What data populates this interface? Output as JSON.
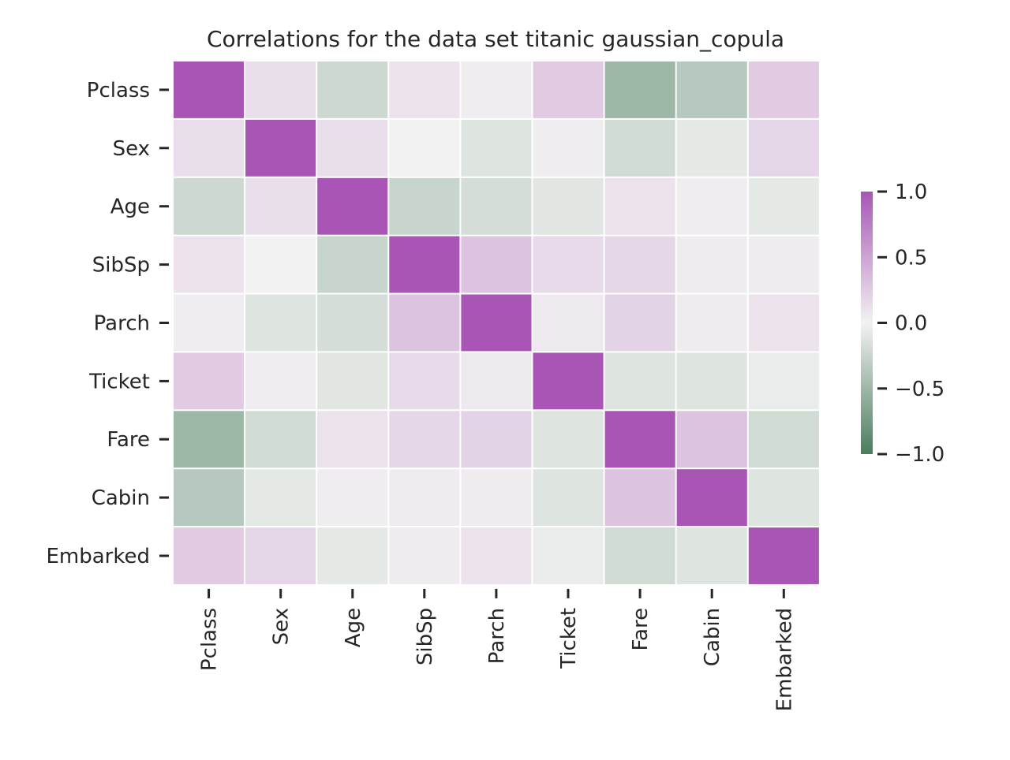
{
  "chart_data": {
    "type": "heatmap",
    "title": "Correlations for the data set titanic gaussian_copula",
    "variables": [
      "Pclass",
      "Sex",
      "Age",
      "SibSp",
      "Parch",
      "Ticket",
      "Fare",
      "Cabin",
      "Embarked"
    ],
    "matrix": [
      [
        1.0,
        0.12,
        -0.22,
        0.1,
        0.03,
        0.25,
        -0.5,
        -0.35,
        0.25
      ],
      [
        0.12,
        1.0,
        0.12,
        0.0,
        -0.12,
        0.03,
        -0.2,
        -0.08,
        0.18
      ],
      [
        -0.22,
        0.12,
        1.0,
        -0.25,
        -0.18,
        -0.1,
        0.1,
        0.03,
        -0.08
      ],
      [
        0.1,
        0.0,
        -0.25,
        1.0,
        0.3,
        0.15,
        0.17,
        0.04,
        0.04
      ],
      [
        0.03,
        -0.12,
        -0.18,
        0.3,
        1.0,
        0.06,
        0.2,
        0.04,
        0.1
      ],
      [
        0.25,
        0.03,
        -0.1,
        0.15,
        0.06,
        1.0,
        -0.12,
        -0.12,
        -0.05
      ],
      [
        -0.5,
        -0.2,
        0.1,
        0.17,
        0.2,
        -0.12,
        1.0,
        0.3,
        -0.2
      ],
      [
        -0.35,
        -0.08,
        0.03,
        0.04,
        0.04,
        -0.12,
        0.3,
        1.0,
        -0.12
      ],
      [
        0.25,
        0.18,
        -0.08,
        0.04,
        0.1,
        -0.05,
        -0.2,
        -0.12,
        1.0
      ]
    ],
    "colorbar": {
      "range": [
        -1.0,
        1.0
      ],
      "ticks": [
        1.0,
        0.5,
        0.0,
        -0.5,
        -1.0
      ],
      "tick_labels": [
        "1.0",
        "0.5",
        "0.0",
        "−0.5",
        "−1.0"
      ]
    },
    "colors": {
      "negative": "#4a7d5e",
      "neutral": "#f2f2f2",
      "positive": "#a855b6"
    },
    "grid": true
  }
}
